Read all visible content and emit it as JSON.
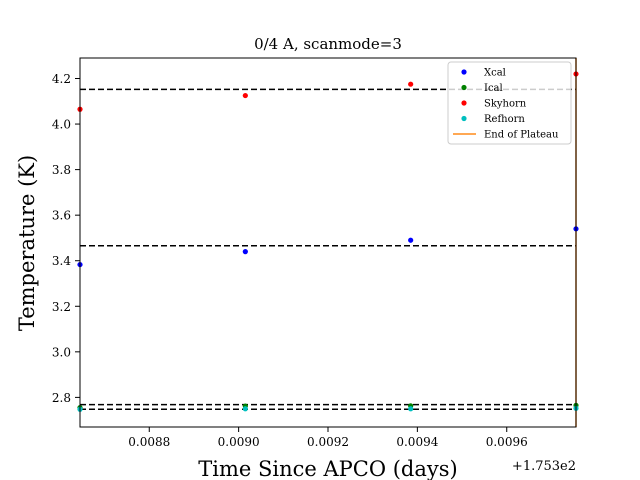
{
  "chart_data": {
    "type": "scatter",
    "title": "0/4 A, scanmode=3",
    "xlabel": "Time Since APCO (days)",
    "ylabel": "Temperature (K)",
    "x_offset_label": "+1.753e2",
    "xlim": [
      0.008645,
      0.009755
    ],
    "ylim": [
      2.67,
      4.29
    ],
    "x_ticks": [
      0.0088,
      0.009,
      0.0092,
      0.0094,
      0.0096
    ],
    "x_tick_labels": [
      "0.0088",
      "0.0090",
      "0.0092",
      "0.0094",
      "0.0096"
    ],
    "y_ticks": [
      2.8,
      3.0,
      3.2,
      3.4,
      3.6,
      3.8,
      4.0,
      4.2
    ],
    "y_tick_labels": [
      "2.8",
      "3.0",
      "3.2",
      "3.4",
      "3.6",
      "3.8",
      "4.0",
      "4.2"
    ],
    "grid": false,
    "legend_position": "top-right",
    "series": [
      {
        "name": "Xcal",
        "color": "#0000ff",
        "x": [
          0.008645,
          0.009015,
          0.009385,
          0.009755
        ],
        "y": [
          3.383,
          3.44,
          3.49,
          3.54
        ]
      },
      {
        "name": "Ical",
        "color": "#008000",
        "x": [
          0.008645,
          0.009015,
          0.009385,
          0.009755
        ],
        "y": [
          2.755,
          2.762,
          2.763,
          2.765
        ]
      },
      {
        "name": "Skyhorn",
        "color": "#ff0000",
        "x": [
          0.008645,
          0.009015,
          0.009385,
          0.009755
        ],
        "y": [
          4.065,
          4.125,
          4.175,
          4.22
        ]
      },
      {
        "name": "Refhorn",
        "color": "#00bfbf",
        "x": [
          0.008645,
          0.009015,
          0.009385,
          0.009755
        ],
        "y": [
          2.748,
          2.75,
          2.75,
          2.752
        ]
      }
    ],
    "horizontal_lines": [
      {
        "y": 4.152,
        "color": "#000000",
        "style": "dashed"
      },
      {
        "y": 3.466,
        "color": "#000000",
        "style": "dashed"
      },
      {
        "y": 2.768,
        "color": "#000000",
        "style": "dashed"
      },
      {
        "y": 2.748,
        "color": "#000000",
        "style": "dashed"
      }
    ],
    "vertical_lines": [
      {
        "name": "End of Plateau",
        "x": 0.009755,
        "color": "#ff8c1a"
      }
    ]
  }
}
